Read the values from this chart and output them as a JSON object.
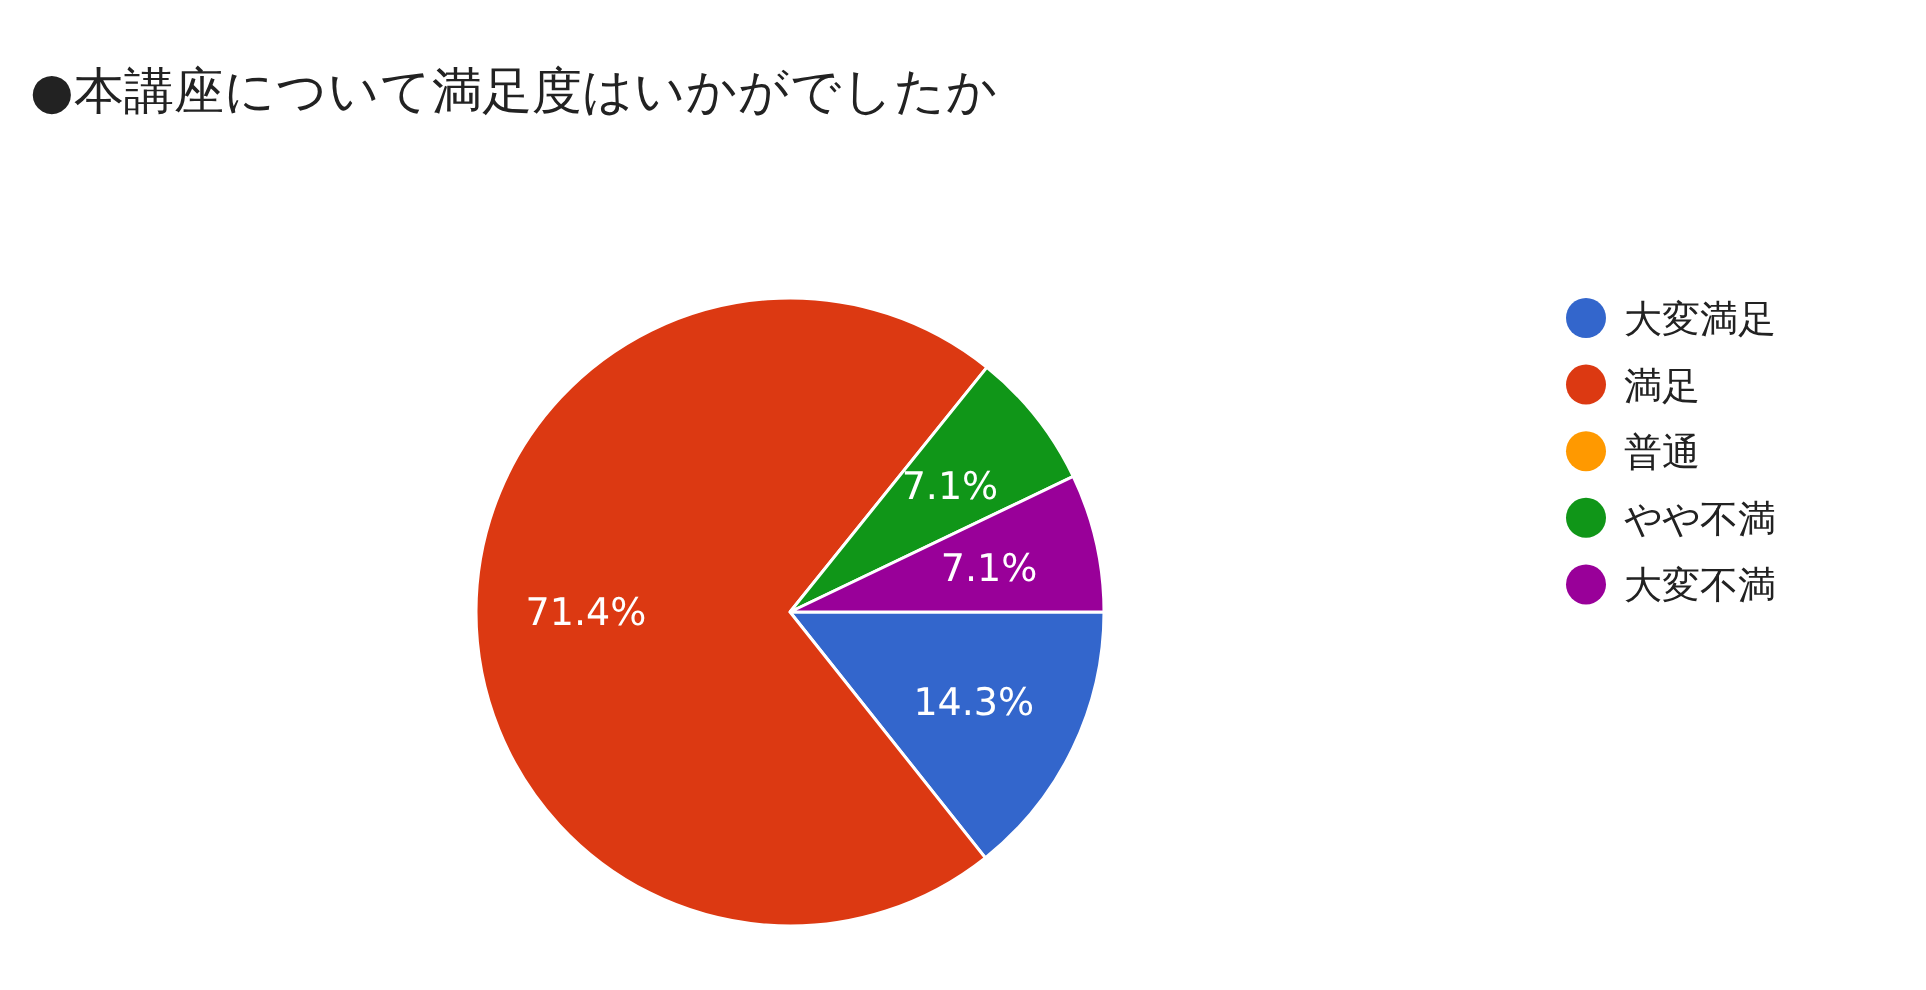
{
  "chart_data": {
    "type": "pie",
    "title": "●本講座について満足度はいかがでしたか",
    "categories": [
      "大変満足",
      "満足",
      "普通",
      "やや不満",
      "大変不満"
    ],
    "values": [
      14.3,
      71.4,
      0,
      7.1,
      7.1
    ],
    "colors": [
      "#3366cc",
      "#dc3912",
      "#ff9900",
      "#109618",
      "#990099"
    ],
    "value_labels": [
      "14.3%",
      "71.4%",
      null,
      "7.1%",
      "7.1%"
    ],
    "legend": "right"
  }
}
